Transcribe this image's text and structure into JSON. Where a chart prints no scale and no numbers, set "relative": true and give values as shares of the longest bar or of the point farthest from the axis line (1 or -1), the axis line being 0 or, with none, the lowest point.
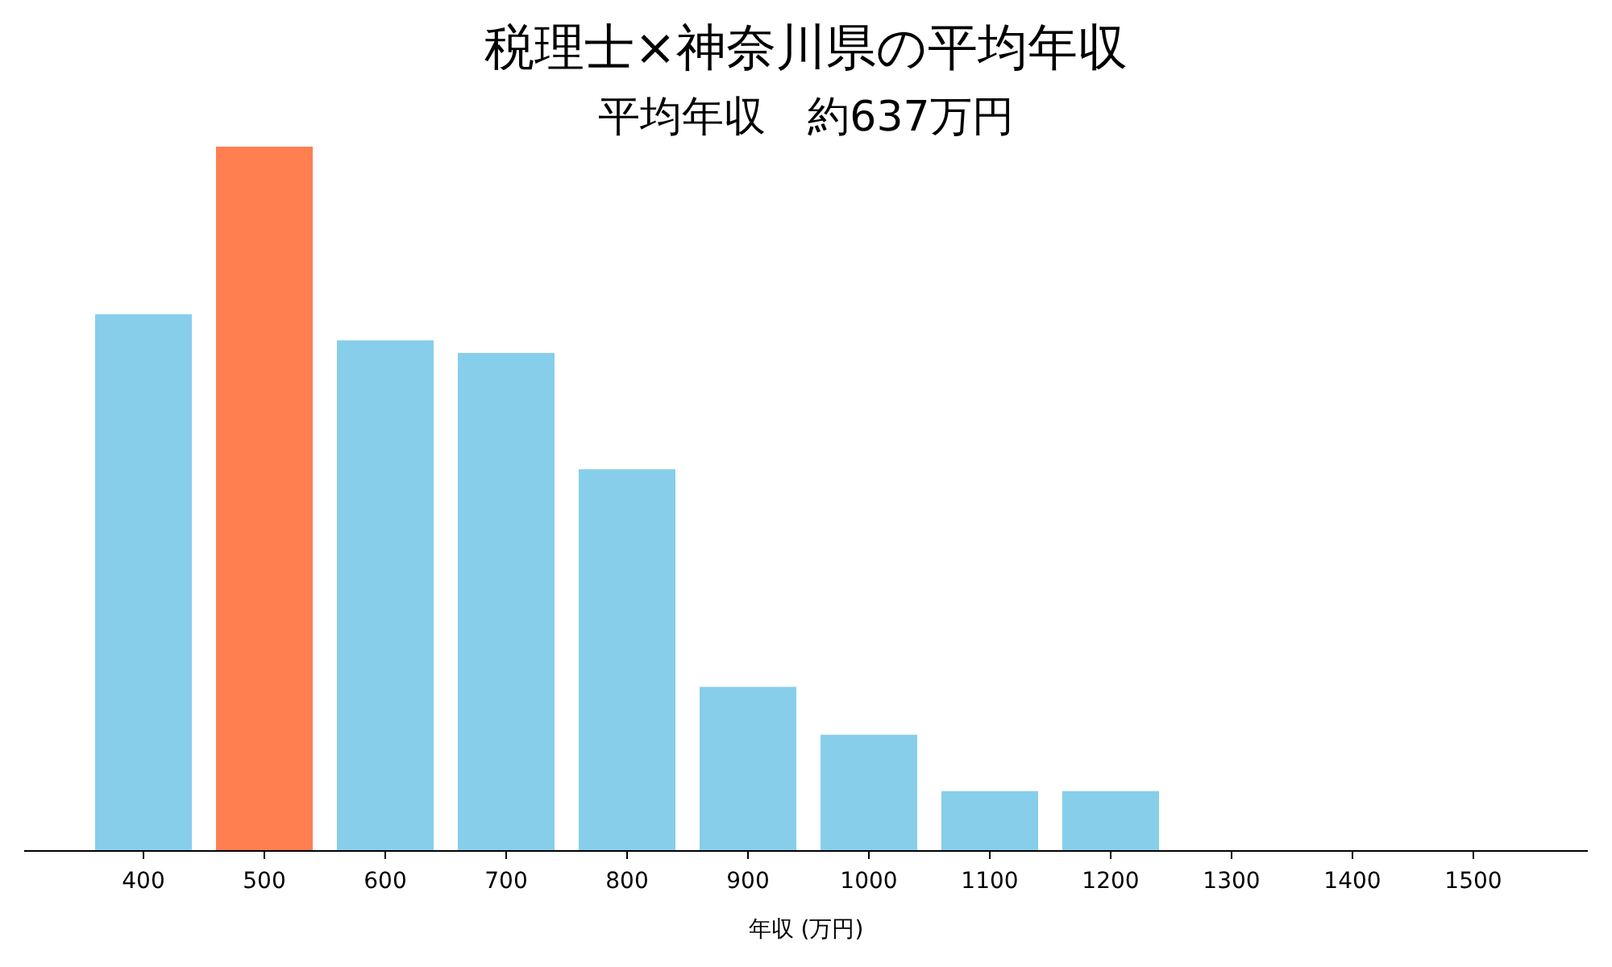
{
  "chart_data": {
    "type": "bar",
    "title": "税理士×神奈川県の平均年収",
    "subtitle": "平均年収　約637万円",
    "xlabel": "年収 (万円)",
    "categories": [
      "400",
      "500",
      "600",
      "700",
      "800",
      "900",
      "1000",
      "1100",
      "1200",
      "1300",
      "1400",
      "1500"
    ],
    "values": [
      0.762,
      1,
      0.725,
      0.707,
      0.542,
      0.233,
      0.165,
      0.085,
      0.085,
      0,
      0,
      0
    ],
    "colors": [
      "#87ceeb",
      "#ff7f50",
      "#87ceeb",
      "#87ceeb",
      "#87ceeb",
      "#87ceeb",
      "#87ceeb",
      "#87ceeb",
      "#87ceeb",
      "#87ceeb",
      "#87ceeb",
      "#87ceeb"
    ],
    "relative": true
  }
}
